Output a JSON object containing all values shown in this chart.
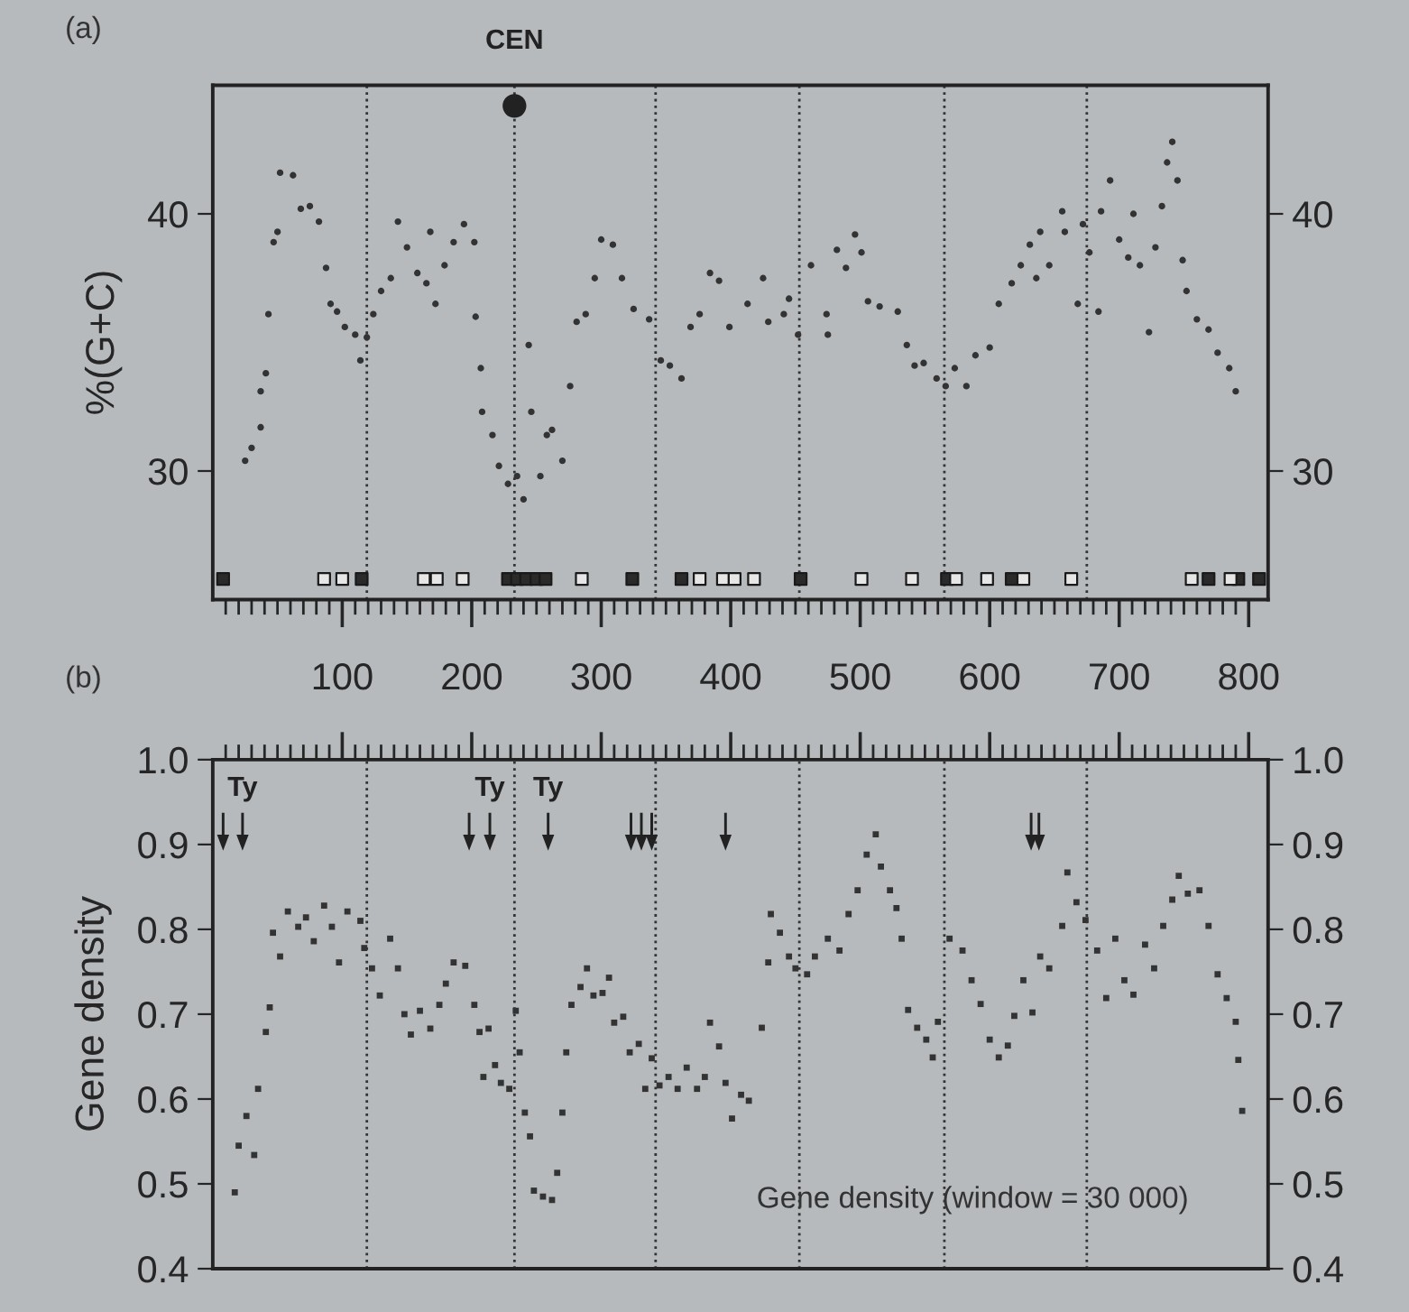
{
  "chart_data": [
    {
      "type": "scatter",
      "title": "(a)",
      "ylabel": "%(G+C)",
      "marker": "circle",
      "grid": false,
      "legend": false,
      "xlim": [
        0,
        815
      ],
      "xticks": [
        {
          "value": 10,
          "label": null
        },
        {
          "value": 20,
          "label": null
        },
        {
          "value": 30,
          "label": null
        },
        {
          "value": 40,
          "label": null
        },
        {
          "value": 50,
          "label": null
        },
        {
          "value": 60,
          "label": null
        },
        {
          "value": 70,
          "label": null
        },
        {
          "value": 80,
          "label": null
        },
        {
          "value": 90,
          "label": null
        },
        100,
        {
          "value": 110,
          "label": null
        },
        {
          "value": 120,
          "label": null
        },
        {
          "value": 130,
          "label": null
        },
        {
          "value": 140,
          "label": null
        },
        {
          "value": 150,
          "label": null
        },
        {
          "value": 160,
          "label": null
        },
        {
          "value": 170,
          "label": null
        },
        {
          "value": 180,
          "label": null
        },
        {
          "value": 190,
          "label": null
        },
        200,
        {
          "value": 210,
          "label": null
        },
        {
          "value": 220,
          "label": null
        },
        {
          "value": 230,
          "label": null
        },
        {
          "value": 240,
          "label": null
        },
        {
          "value": 250,
          "label": null
        },
        {
          "value": 260,
          "label": null
        },
        {
          "value": 270,
          "label": null
        },
        {
          "value": 280,
          "label": null
        },
        {
          "value": 290,
          "label": null
        },
        300,
        {
          "value": 310,
          "label": null
        },
        {
          "value": 320,
          "label": null
        },
        {
          "value": 330,
          "label": null
        },
        {
          "value": 340,
          "label": null
        },
        {
          "value": 350,
          "label": null
        },
        {
          "value": 360,
          "label": null
        },
        {
          "value": 370,
          "label": null
        },
        {
          "value": 380,
          "label": null
        },
        {
          "value": 390,
          "label": null
        },
        400,
        {
          "value": 410,
          "label": null
        },
        {
          "value": 420,
          "label": null
        },
        {
          "value": 430,
          "label": null
        },
        {
          "value": 440,
          "label": null
        },
        {
          "value": 450,
          "label": null
        },
        {
          "value": 460,
          "label": null
        },
        {
          "value": 470,
          "label": null
        },
        {
          "value": 480,
          "label": null
        },
        {
          "value": 490,
          "label": null
        },
        500,
        {
          "value": 510,
          "label": null
        },
        {
          "value": 520,
          "label": null
        },
        {
          "value": 530,
          "label": null
        },
        {
          "value": 540,
          "label": null
        },
        {
          "value": 550,
          "label": null
        },
        {
          "value": 560,
          "label": null
        },
        {
          "value": 570,
          "label": null
        },
        {
          "value": 580,
          "label": null
        },
        {
          "value": 590,
          "label": null
        },
        600,
        {
          "value": 610,
          "label": null
        },
        {
          "value": 620,
          "label": null
        },
        {
          "value": 630,
          "label": null
        },
        {
          "value": 640,
          "label": null
        },
        {
          "value": 650,
          "label": null
        },
        {
          "value": 660,
          "label": null
        },
        {
          "value": 670,
          "label": null
        },
        {
          "value": 680,
          "label": null
        },
        {
          "value": 690,
          "label": null
        },
        700,
        {
          "value": 710,
          "label": null
        },
        {
          "value": 720,
          "label": null
        },
        {
          "value": 730,
          "label": null
        },
        {
          "value": 740,
          "label": null
        },
        {
          "value": 750,
          "label": null
        },
        {
          "value": 760,
          "label": null
        },
        {
          "value": 770,
          "label": null
        },
        {
          "value": 780,
          "label": null
        },
        {
          "value": 790,
          "label": null
        },
        800
      ],
      "ylim": [
        25,
        45
      ],
      "yticks": [
        30,
        40
      ],
      "y2lim": [
        25,
        45
      ],
      "y2ticks": [
        30,
        40
      ],
      "ref_lines": [
        {
          "axis": "x",
          "value": 119,
          "color": "#333333",
          "line_style": "dotted"
        },
        {
          "axis": "x",
          "value": 233,
          "label": "CEN",
          "color": "#333333",
          "line_style": "dotted"
        },
        {
          "axis": "x",
          "value": 342,
          "color": "#333333",
          "line_style": "dotted"
        },
        {
          "axis": "x",
          "value": 453,
          "color": "#333333",
          "line_style": "dotted"
        },
        {
          "axis": "x",
          "value": 565,
          "color": "#333333",
          "line_style": "dotted"
        },
        {
          "axis": "x",
          "value": 675,
          "color": "#333333",
          "line_style": "dotted"
        }
      ],
      "series": [
        {
          "color": "#333333",
          "x": [
            25,
            30,
            37,
            37,
            41,
            43,
            47,
            50,
            52,
            62,
            68,
            75,
            82,
            87.5,
            91,
            96,
            102,
            110,
            114,
            119,
            124,
            130,
            137.5,
            143,
            150,
            158,
            165,
            168,
            172,
            179,
            186,
            194,
            202,
            203,
            207,
            208,
            216,
            221,
            228,
            235,
            240,
            244,
            246,
            253,
            258,
            262,
            270,
            276,
            281,
            288,
            295,
            300,
            309,
            316,
            325,
            337,
            346,
            353,
            362,
            369,
            376,
            384,
            391,
            399,
            413,
            425,
            429,
            441,
            445,
            452,
            462,
            474,
            475,
            482,
            489,
            496,
            501,
            506,
            515,
            529,
            536,
            542,
            549,
            559,
            566,
            573,
            582,
            589,
            600,
            607,
            617,
            624,
            631,
            636,
            639,
            646,
            656,
            658,
            668,
            672,
            677,
            684,
            686,
            693,
            700,
            707,
            711,
            716,
            723,
            728,
            733,
            737,
            741,
            745,
            749,
            752,
            760,
            769,
            776,
            785,
            790
          ],
          "values": [
            30.4,
            30.9,
            31.7,
            33.1,
            33.8,
            36.1,
            38.9,
            39.3,
            41.6,
            41.5,
            40.2,
            40.3,
            39.7,
            37.9,
            36.5,
            36.2,
            35.6,
            35.3,
            34.3,
            35.2,
            36.1,
            37.0,
            37.5,
            39.7,
            38.7,
            37.7,
            37.3,
            39.3,
            36.5,
            38.0,
            38.9,
            39.6,
            38.9,
            36.0,
            34.0,
            32.3,
            31.4,
            30.2,
            29.5,
            29.8,
            28.9,
            34.9,
            32.3,
            29.8,
            31.4,
            31.6,
            30.4,
            33.3,
            35.8,
            36.1,
            37.5,
            39.0,
            38.8,
            37.5,
            36.3,
            35.9,
            34.3,
            34.1,
            33.6,
            35.6,
            36.1,
            37.7,
            37.4,
            35.6,
            36.5,
            37.5,
            35.8,
            36.1,
            36.7,
            35.3,
            38.0,
            36.1,
            35.3,
            38.6,
            37.9,
            39.2,
            38.5,
            36.6,
            36.4,
            36.2,
            34.9,
            34.1,
            34.2,
            33.6,
            33.3,
            34.0,
            33.3,
            34.5,
            34.8,
            36.5,
            37.3,
            38.0,
            38.8,
            37.5,
            39.3,
            38.0,
            40.1,
            39.3,
            36.5,
            39.6,
            38.5,
            36.2,
            40.1,
            41.3,
            39.0,
            38.3,
            40.0,
            38.0,
            35.4,
            38.7,
            40.3,
            42.0,
            42.8,
            41.3,
            38.2,
            37.0,
            35.9,
            35.5,
            34.6,
            34.0,
            33.1
          ]
        },
        {
          "color": "#222222",
          "marker": "circle",
          "x": [
            233
          ],
          "values": [
            44.2
          ]
        },
        {
          "color": "#2a2a2a",
          "marker": "square",
          "x": [
            8,
            115,
            228,
            235,
            242,
            250,
            257,
            324,
            362,
            454,
            567,
            617,
            769,
            792,
            808
          ],
          "values": [
            25.8,
            25.8,
            25.8,
            25.8,
            25.8,
            25.8,
            25.8,
            25.8,
            25.8,
            25.8,
            25.8,
            25.8,
            25.8,
            25.8,
            25.8
          ]
        },
        {
          "color": "#e6e6e6",
          "marker": "square",
          "x": [
            86,
            100,
            163,
            173,
            193,
            285,
            376,
            394,
            403,
            418,
            501,
            540,
            574,
            598,
            626,
            663,
            756,
            786
          ],
          "values": [
            25.8,
            25.8,
            25.8,
            25.8,
            25.8,
            25.8,
            25.8,
            25.8,
            25.8,
            25.8,
            25.8,
            25.8,
            25.8,
            25.8,
            25.8,
            25.8,
            25.8,
            25.8
          ]
        }
      ]
    },
    {
      "type": "scatter",
      "title": "(b)",
      "ylabel": "Gene density",
      "marker": "square",
      "grid": false,
      "legend": false,
      "tick_labels": "y",
      "xlim": [
        0,
        815
      ],
      "xticks": [
        {
          "value": 10,
          "label": null
        },
        {
          "value": 20,
          "label": null
        },
        {
          "value": 30,
          "label": null
        },
        {
          "value": 40,
          "label": null
        },
        {
          "value": 50,
          "label": null
        },
        {
          "value": 60,
          "label": null
        },
        {
          "value": 70,
          "label": null
        },
        {
          "value": 80,
          "label": null
        },
        {
          "value": 90,
          "label": null
        },
        100,
        {
          "value": 110,
          "label": null
        },
        {
          "value": 120,
          "label": null
        },
        {
          "value": 130,
          "label": null
        },
        {
          "value": 140,
          "label": null
        },
        {
          "value": 150,
          "label": null
        },
        {
          "value": 160,
          "label": null
        },
        {
          "value": 170,
          "label": null
        },
        {
          "value": 180,
          "label": null
        },
        {
          "value": 190,
          "label": null
        },
        200,
        {
          "value": 210,
          "label": null
        },
        {
          "value": 220,
          "label": null
        },
        {
          "value": 230,
          "label": null
        },
        {
          "value": 240,
          "label": null
        },
        {
          "value": 250,
          "label": null
        },
        {
          "value": 260,
          "label": null
        },
        {
          "value": 270,
          "label": null
        },
        {
          "value": 280,
          "label": null
        },
        {
          "value": 290,
          "label": null
        },
        300,
        {
          "value": 310,
          "label": null
        },
        {
          "value": 320,
          "label": null
        },
        {
          "value": 330,
          "label": null
        },
        {
          "value": 340,
          "label": null
        },
        {
          "value": 350,
          "label": null
        },
        {
          "value": 360,
          "label": null
        },
        {
          "value": 370,
          "label": null
        },
        {
          "value": 380,
          "label": null
        },
        {
          "value": 390,
          "label": null
        },
        400,
        {
          "value": 410,
          "label": null
        },
        {
          "value": 420,
          "label": null
        },
        {
          "value": 430,
          "label": null
        },
        {
          "value": 440,
          "label": null
        },
        {
          "value": 450,
          "label": null
        },
        {
          "value": 460,
          "label": null
        },
        {
          "value": 470,
          "label": null
        },
        {
          "value": 480,
          "label": null
        },
        {
          "value": 490,
          "label": null
        },
        500,
        {
          "value": 510,
          "label": null
        },
        {
          "value": 520,
          "label": null
        },
        {
          "value": 530,
          "label": null
        },
        {
          "value": 540,
          "label": null
        },
        {
          "value": 550,
          "label": null
        },
        {
          "value": 560,
          "label": null
        },
        {
          "value": 570,
          "label": null
        },
        {
          "value": 580,
          "label": null
        },
        {
          "value": 590,
          "label": null
        },
        600,
        {
          "value": 610,
          "label": null
        },
        {
          "value": 620,
          "label": null
        },
        {
          "value": 630,
          "label": null
        },
        {
          "value": 640,
          "label": null
        },
        {
          "value": 650,
          "label": null
        },
        {
          "value": 660,
          "label": null
        },
        {
          "value": 670,
          "label": null
        },
        {
          "value": 680,
          "label": null
        },
        {
          "value": 690,
          "label": null
        },
        700,
        {
          "value": 710,
          "label": null
        },
        {
          "value": 720,
          "label": null
        },
        {
          "value": 730,
          "label": null
        },
        {
          "value": 740,
          "label": null
        },
        {
          "value": 750,
          "label": null
        },
        {
          "value": 760,
          "label": null
        },
        {
          "value": 770,
          "label": null
        },
        {
          "value": 780,
          "label": null
        },
        {
          "value": 790,
          "label": null
        },
        800
      ],
      "ylim": [
        0.4,
        1.0
      ],
      "yticks": [
        0.4,
        0.5,
        0.6,
        0.7,
        0.8,
        0.9,
        {
          "value": 1.0,
          "label": "1.0"
        }
      ],
      "y2lim": [
        0.4,
        1.0
      ],
      "y2ticks": [
        0.4,
        0.5,
        0.6,
        0.7,
        0.8,
        0.9,
        {
          "value": 1.0,
          "label": "1.0"
        }
      ],
      "ref_lines": [
        {
          "axis": "x",
          "value": 119,
          "color": "#333333",
          "line_style": "dotted"
        },
        {
          "axis": "x",
          "value": 233,
          "color": "#333333",
          "line_style": "dotted"
        },
        {
          "axis": "x",
          "value": 342,
          "color": "#333333",
          "line_style": "dotted"
        },
        {
          "axis": "x",
          "value": 453,
          "color": "#333333",
          "line_style": "dotted"
        },
        {
          "axis": "x",
          "value": 565,
          "color": "#333333",
          "line_style": "dotted"
        },
        {
          "axis": "x",
          "value": 675,
          "color": "#333333",
          "line_style": "dotted"
        }
      ],
      "annotations": [
        "Gene density (window = 30 000)"
      ],
      "series": [
        {
          "color": "#333333",
          "x": [
            17,
            20,
            26,
            32,
            35,
            41,
            44,
            46.5,
            52,
            58,
            66,
            72,
            78,
            86,
            92,
            97.5,
            104,
            114,
            117,
            123,
            129,
            137,
            143,
            148,
            153,
            160,
            168,
            175,
            180,
            186,
            195,
            202,
            206,
            209,
            213,
            218,
            222.5,
            229,
            234,
            237,
            241,
            245,
            248,
            255,
            262,
            266,
            270,
            273,
            277,
            284,
            289,
            294,
            301,
            306,
            310,
            317,
            322,
            329,
            334,
            339,
            345,
            352,
            359,
            366,
            374,
            380,
            384,
            391,
            396,
            401,
            408,
            414,
            424,
            429,
            431,
            438,
            445,
            450,
            459,
            465,
            475,
            484,
            491,
            498,
            505,
            512,
            516,
            523,
            528,
            532,
            537,
            544,
            551,
            556,
            560,
            569,
            579,
            586,
            593,
            600,
            607,
            614,
            619,
            626,
            633,
            639,
            646,
            656,
            660,
            667,
            674,
            683,
            690,
            697,
            704,
            711,
            720,
            727,
            734,
            741,
            746,
            753,
            762,
            769,
            776,
            783,
            790,
            792,
            795
          ],
          "values": [
            0.49,
            0.545,
            0.58,
            0.534,
            0.612,
            0.679,
            0.708,
            0.796,
            0.768,
            0.821,
            0.803,
            0.814,
            0.786,
            0.828,
            0.803,
            0.761,
            0.821,
            0.81,
            0.778,
            0.754,
            0.722,
            0.789,
            0.754,
            0.7,
            0.676,
            0.704,
            0.683,
            0.711,
            0.736,
            0.761,
            0.757,
            0.711,
            0.679,
            0.626,
            0.683,
            0.64,
            0.619,
            0.612,
            0.704,
            0.655,
            0.584,
            0.556,
            0.492,
            0.485,
            0.481,
            0.513,
            0.584,
            0.655,
            0.711,
            0.732,
            0.754,
            0.722,
            0.725,
            0.743,
            0.69,
            0.697,
            0.655,
            0.665,
            0.612,
            0.648,
            0.616,
            0.626,
            0.612,
            0.637,
            0.612,
            0.626,
            0.69,
            0.662,
            0.619,
            0.577,
            0.605,
            0.598,
            0.684,
            0.761,
            0.818,
            0.796,
            0.768,
            0.754,
            0.747,
            0.768,
            0.789,
            0.775,
            0.818,
            0.846,
            0.888,
            0.912,
            0.874,
            0.846,
            0.825,
            0.789,
            0.705,
            0.684,
            0.67,
            0.649,
            0.691,
            0.789,
            0.775,
            0.74,
            0.712,
            0.67,
            0.649,
            0.663,
            0.698,
            0.74,
            0.702,
            0.768,
            0.754,
            0.804,
            0.867,
            0.832,
            0.811,
            0.775,
            0.719,
            0.789,
            0.74,
            0.723,
            0.782,
            0.754,
            0.804,
            0.835,
            0.863,
            0.842,
            0.846,
            0.804,
            0.747,
            0.719,
            0.691,
            0.646,
            0.586
          ]
        },
        {
          "color": "#222222",
          "marker": "triangle",
          "x": [
            8,
            23,
            198,
            214,
            259,
            323,
            331,
            339,
            396,
            632,
            638
          ],
          "values": [
            0.915,
            0.915,
            0.915,
            0.915,
            0.915,
            0.915,
            0.915,
            0.915,
            0.915,
            0.915,
            0.915
          ],
          "value_labels": [
            null,
            "Ty",
            null,
            "Ty",
            "Ty",
            null,
            null,
            null,
            null,
            null,
            null
          ]
        }
      ]
    }
  ]
}
